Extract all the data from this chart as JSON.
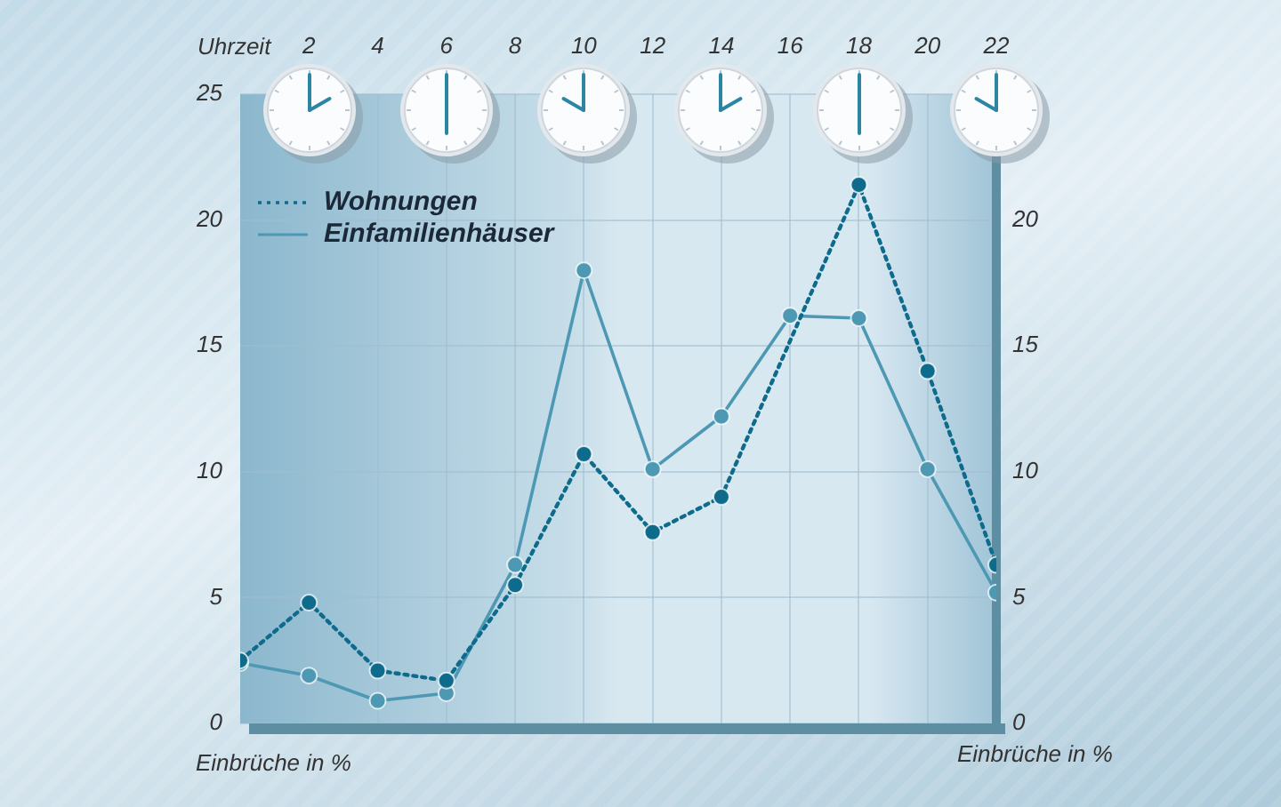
{
  "chart_data": {
    "type": "line",
    "xlabel": "Uhrzeit",
    "ylabel": "Einbrüche in %",
    "y2label": "Einbrüche in %",
    "x": [
      0,
      2,
      4,
      6,
      8,
      10,
      12,
      14,
      16,
      18,
      20,
      22
    ],
    "series": [
      {
        "name": "Wohnungen",
        "color": "#0e6b8c",
        "line_style": "dotted",
        "x": [
          0,
          2,
          4,
          6,
          8,
          10,
          12,
          14,
          18,
          20,
          22
        ],
        "values": [
          2.5,
          4.8,
          2.1,
          1.7,
          5.5,
          10.7,
          7.6,
          9.0,
          21.4,
          14.0,
          6.3
        ]
      },
      {
        "name": "Einfamilienhäuser",
        "color": "#4d98b3",
        "line_style": "solid",
        "values": [
          2.4,
          1.9,
          0.9,
          1.2,
          6.3,
          18.0,
          10.1,
          12.2,
          16.2,
          16.1,
          10.1,
          5.2
        ]
      }
    ],
    "xlim": [
      0,
      22
    ],
    "xticks": [
      2,
      4,
      6,
      8,
      10,
      12,
      14,
      16,
      18,
      20,
      22
    ],
    "ylim": [
      0,
      25
    ],
    "yticks": [
      0,
      5,
      10,
      15,
      20,
      25
    ],
    "y2lim": [
      0,
      25
    ],
    "y2ticks": [
      0,
      5,
      10,
      15,
      20
    ],
    "grid": true,
    "legend": "top left",
    "marker": "circle"
  }
}
